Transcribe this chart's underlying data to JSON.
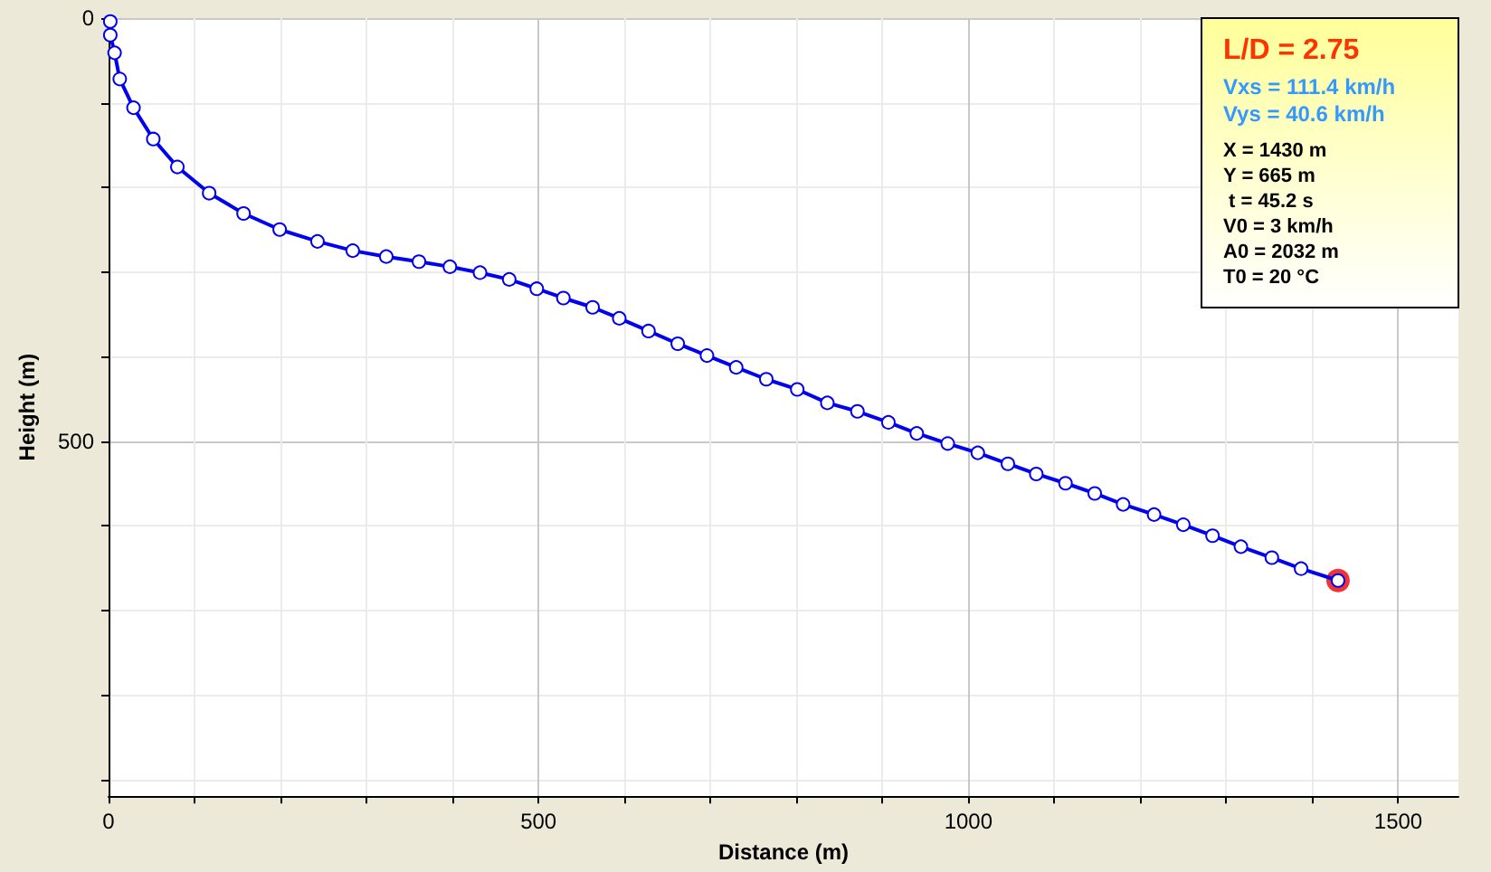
{
  "chart_data": {
    "type": "line",
    "xlabel": "Distance (m)",
    "ylabel": "Height (m)",
    "xlim": [
      0,
      1570
    ],
    "ylim": [
      920,
      0
    ],
    "xticks": [
      0,
      {
        "value": 100,
        "label": null
      },
      {
        "value": 200,
        "label": null
      },
      {
        "value": 300,
        "label": null
      },
      {
        "value": 400,
        "label": null
      },
      500,
      {
        "value": 600,
        "label": null
      },
      {
        "value": 700,
        "label": null
      },
      {
        "value": 800,
        "label": null
      },
      {
        "value": 900,
        "label": null
      },
      1000,
      {
        "value": 1100,
        "label": null
      },
      {
        "value": 1200,
        "label": null
      },
      {
        "value": 1300,
        "label": null
      },
      {
        "value": 1400,
        "label": null
      },
      1500
    ],
    "yticks": [
      0,
      {
        "value": 100,
        "label": null
      },
      {
        "value": 200,
        "label": null
      },
      {
        "value": 300,
        "label": null
      },
      {
        "value": 400,
        "label": null
      },
      500,
      {
        "value": 600,
        "label": null
      },
      {
        "value": 700,
        "label": null
      },
      {
        "value": 800,
        "label": null
      },
      {
        "value": 900,
        "label": null
      }
    ],
    "grid": true,
    "marker": "circle",
    "line_style": "solid",
    "series": [
      {
        "color": "#0000ee",
        "x": [
          2,
          2,
          7,
          13,
          29,
          52,
          80,
          117,
          157,
          199,
          243,
          284,
          323,
          361,
          397,
          432,
          466,
          498,
          529,
          563,
          594,
          628,
          662,
          696,
          730,
          765,
          801,
          836,
          871,
          907,
          940,
          976,
          1011,
          1046,
          1079,
          1113,
          1147,
          1180,
          1216,
          1250,
          1284,
          1317,
          1353,
          1387,
          1430
        ],
        "values": [
          4,
          20,
          41,
          72,
          106,
          143,
          176,
          207,
          231,
          250,
          264,
          275,
          282,
          288,
          294,
          301,
          309,
          320,
          331,
          342,
          355,
          370,
          385,
          399,
          413,
          427,
          439,
          455,
          465,
          478,
          491,
          503,
          514,
          527,
          539,
          550,
          562,
          575,
          587,
          599,
          612,
          625,
          638,
          651,
          665
        ]
      },
      {
        "type": "scatter",
        "color": "#ee0000",
        "x": [
          1430
        ],
        "values": [
          665
        ]
      }
    ],
    "annotations": [
      "L/D = 2.75",
      "Vxs = 111.4 km/h",
      "Vys = 40.6 km/h",
      "X = 1430 m",
      "Y = 665 m",
      " t = 45.2 s",
      "V0 = 3 km/h",
      "A0 = 2032 m",
      "T0 = 20 °C"
    ]
  }
}
